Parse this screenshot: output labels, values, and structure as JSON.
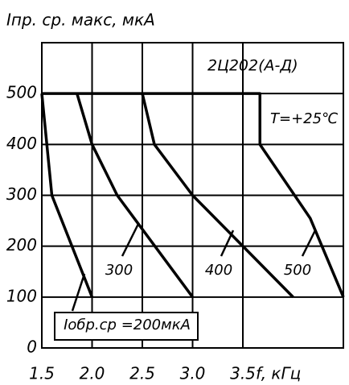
{
  "chart_data": {
    "type": "line",
    "title": "2Ц202(А-Д)",
    "y_label": "Iпр. ср. макс, мкА",
    "x_label": "f, кГц",
    "annotation": "T=+25℃",
    "xlim": [
      1.5,
      4.5
    ],
    "xticks": [
      1.5,
      {
        "value": 2,
        "label": "2.0"
      },
      2.5,
      {
        "value": 3,
        "label": "3.0"
      },
      3.5
    ],
    "ylim": [
      0,
      600
    ],
    "yticks": [
      0,
      100,
      200,
      300,
      400,
      500
    ],
    "grid": true,
    "series": [
      {
        "name": "Iобр.ср =200мкА",
        "color": "#000000",
        "x": [
          1.5,
          1.6,
          2.0
        ],
        "values": [
          500,
          300,
          100
        ]
      },
      {
        "name": "300",
        "color": "#000000",
        "x": [
          1.85,
          2.0,
          2.25,
          3.0
        ],
        "values": [
          500,
          400,
          300,
          100
        ]
      },
      {
        "name": "400",
        "color": "#000000",
        "x": [
          2.5,
          2.62,
          3.0,
          3.5,
          4.0
        ],
        "values": [
          500,
          400,
          300,
          200,
          100
        ]
      },
      {
        "name": "500",
        "color": "#000000",
        "x": [
          1.5,
          3.67,
          3.67,
          4.17,
          4.5
        ],
        "values": [
          500,
          500,
          400,
          255,
          100
        ]
      }
    ]
  }
}
